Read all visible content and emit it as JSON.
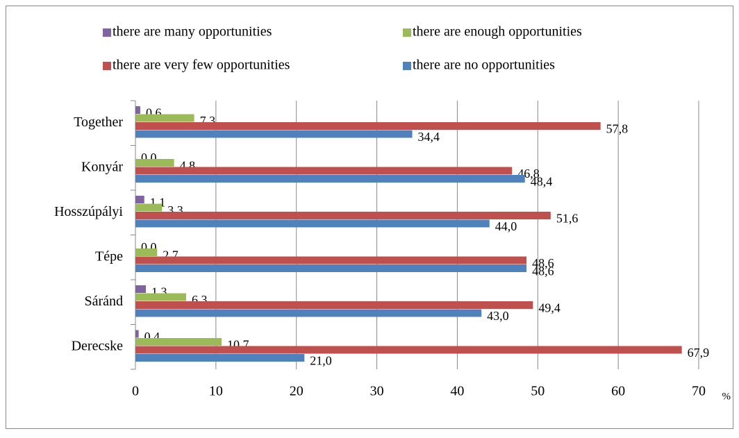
{
  "chart_data": {
    "type": "bar",
    "orientation": "horizontal",
    "categories": [
      "Together",
      "Konyár",
      "Hosszúpályi",
      "Tépe",
      "Sáránd",
      "Derecske"
    ],
    "series": [
      {
        "name": "there are many opportunities",
        "color": "#8064a2",
        "values": [
          0.6,
          0.0,
          1.1,
          0.0,
          1.3,
          0.4
        ],
        "value_labels": [
          "0,6",
          "0,0",
          "1,1",
          "0,0",
          "1,3",
          "0,4"
        ]
      },
      {
        "name": "there are enough opportunities",
        "color": "#9bbb59",
        "values": [
          7.3,
          4.8,
          3.3,
          2.7,
          6.3,
          10.7
        ],
        "value_labels": [
          "7,3",
          "4,8",
          "3,3",
          "2,7",
          "6,3",
          "10,7"
        ]
      },
      {
        "name": "there are very few opportunities",
        "color": "#c0504d",
        "values": [
          57.8,
          46.8,
          51.6,
          48.6,
          49.4,
          67.9
        ],
        "value_labels": [
          "57,8",
          "46,8",
          "51,6",
          "48,6",
          "49,4",
          "67,9"
        ]
      },
      {
        "name": "there are no opportunities",
        "color": "#4f81bd",
        "values": [
          34.4,
          48.4,
          44.0,
          48.6,
          43.0,
          21.0
        ],
        "value_labels": [
          "34,4",
          "48,4",
          "44,0",
          "48,6",
          "43,0",
          "21,0"
        ]
      }
    ],
    "xlim": [
      0,
      70
    ],
    "xticks": [
      0,
      10,
      20,
      30,
      40,
      50,
      60,
      70
    ],
    "xlabel": "%",
    "grid": true,
    "legend": "top"
  }
}
